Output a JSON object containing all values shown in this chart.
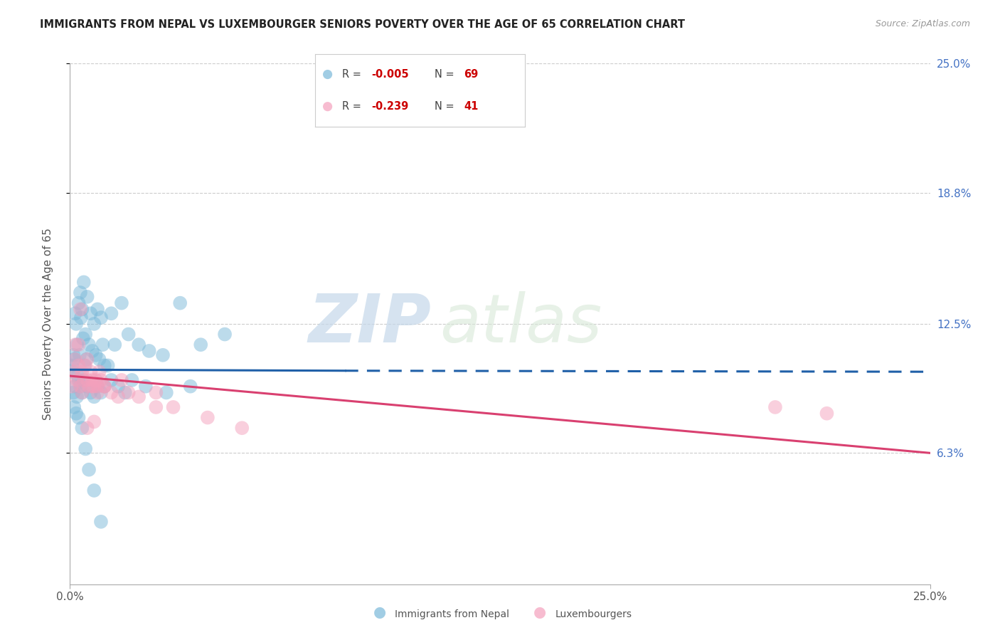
{
  "title": "IMMIGRANTS FROM NEPAL VS LUXEMBOURGER SENIORS POVERTY OVER THE AGE OF 65 CORRELATION CHART",
  "source": "Source: ZipAtlas.com",
  "ylabel": "Seniors Poverty Over the Age of 65",
  "yticks": [
    6.3,
    12.5,
    18.8,
    25.0
  ],
  "ytick_labels": [
    "6.3%",
    "12.5%",
    "18.8%",
    "25.0%"
  ],
  "xmin": 0.0,
  "xmax": 25.0,
  "ymin": 0.0,
  "ymax": 25.0,
  "legend_label1": "Immigrants from Nepal",
  "legend_label2": "Luxembourgers",
  "blue_color": "#7ab8d9",
  "pink_color": "#f4a0bc",
  "blue_line_color": "#2060a8",
  "pink_line_color": "#d94070",
  "watermark_zip": "ZIP",
  "watermark_atlas": "atlas",
  "nepal_x": [
    0.05,
    0.08,
    0.1,
    0.12,
    0.15,
    0.18,
    0.2,
    0.22,
    0.25,
    0.28,
    0.3,
    0.32,
    0.35,
    0.38,
    0.4,
    0.42,
    0.45,
    0.48,
    0.5,
    0.55,
    0.6,
    0.65,
    0.7,
    0.75,
    0.8,
    0.85,
    0.9,
    0.95,
    1.0,
    1.1,
    1.2,
    1.3,
    1.5,
    1.7,
    2.0,
    2.3,
    2.7,
    3.2,
    3.8,
    4.5,
    0.1,
    0.15,
    0.2,
    0.25,
    0.3,
    0.35,
    0.4,
    0.5,
    0.6,
    0.7,
    0.8,
    0.9,
    1.0,
    1.2,
    1.4,
    1.6,
    1.8,
    2.2,
    2.8,
    3.5,
    0.12,
    0.18,
    0.25,
    0.35,
    0.45,
    0.55,
    0.7,
    0.9,
    7.5
  ],
  "nepal_y": [
    10.5,
    10.2,
    11.0,
    10.8,
    13.0,
    12.5,
    11.5,
    10.0,
    13.5,
    11.0,
    14.0,
    12.8,
    13.2,
    11.8,
    14.5,
    10.5,
    12.0,
    10.8,
    13.8,
    11.5,
    13.0,
    11.2,
    12.5,
    11.0,
    13.2,
    10.8,
    12.8,
    11.5,
    10.5,
    10.5,
    13.0,
    11.5,
    13.5,
    12.0,
    11.5,
    11.2,
    11.0,
    13.5,
    11.5,
    12.0,
    9.2,
    9.5,
    9.0,
    9.8,
    9.5,
    9.2,
    9.8,
    9.5,
    9.2,
    9.0,
    9.5,
    9.2,
    9.5,
    9.8,
    9.5,
    9.2,
    9.8,
    9.5,
    9.2,
    9.5,
    8.5,
    8.2,
    8.0,
    7.5,
    6.5,
    5.5,
    4.5,
    3.0,
    24.0
  ],
  "lux_x": [
    0.05,
    0.1,
    0.15,
    0.2,
    0.25,
    0.3,
    0.35,
    0.4,
    0.45,
    0.5,
    0.55,
    0.6,
    0.65,
    0.7,
    0.75,
    0.8,
    0.85,
    0.9,
    1.0,
    1.2,
    1.4,
    1.7,
    2.0,
    2.5,
    3.0,
    4.0,
    5.0,
    0.15,
    0.25,
    0.35,
    0.5,
    0.65,
    0.8,
    1.0,
    1.5,
    2.5,
    0.3,
    0.5,
    0.7,
    20.5,
    22.0
  ],
  "lux_y": [
    9.5,
    10.2,
    10.8,
    9.8,
    11.5,
    9.5,
    10.2,
    9.8,
    10.5,
    9.8,
    9.5,
    10.2,
    9.8,
    9.5,
    9.8,
    9.5,
    10.2,
    9.8,
    9.5,
    9.2,
    9.0,
    9.2,
    9.0,
    8.5,
    8.5,
    8.0,
    7.5,
    11.5,
    10.5,
    9.2,
    10.8,
    9.5,
    9.2,
    9.5,
    9.8,
    9.2,
    13.2,
    7.5,
    7.8,
    8.5,
    8.2
  ],
  "nepal_trend_x0": 0.0,
  "nepal_trend_x_solid_end": 8.0,
  "nepal_trend_y0": 10.3,
  "nepal_trend_y_solid_end": 10.25,
  "nepal_trend_y25": 10.2,
  "lux_trend_x0": 0.0,
  "lux_trend_y0": 10.0,
  "lux_trend_y25": 6.3
}
